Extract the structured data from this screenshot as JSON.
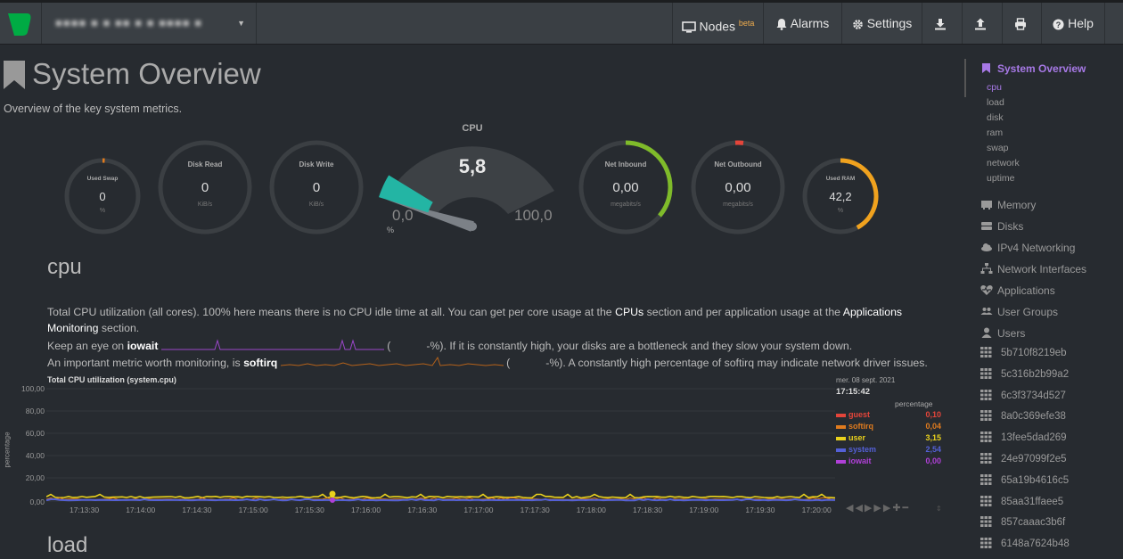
{
  "topbar": {
    "hostname": "■■■■ ■ ■ ■■ ■ ■ ■■■■ ■",
    "nodes_label": "Nodes",
    "nodes_badge": "beta",
    "alarms_label": "Alarms",
    "settings_label": "Settings",
    "help_label": "Help"
  },
  "page": {
    "title": "System Overview",
    "subtitle": "Overview of the key system metrics."
  },
  "gauges": {
    "swap": {
      "label": "Used Swap",
      "value": "0",
      "unit": "%"
    },
    "disk_read": {
      "label": "Disk Read",
      "value": "0",
      "unit": "KiB/s"
    },
    "disk_write": {
      "label": "Disk Write",
      "value": "0",
      "unit": "KiB/s"
    },
    "cpu": {
      "label": "CPU",
      "value": "5,8",
      "min": "0,0",
      "max": "100,0",
      "unit": "%",
      "fraction": 0.058
    },
    "net_in": {
      "label": "Net Inbound",
      "value": "0,00",
      "unit": "megabits/s"
    },
    "net_out": {
      "label": "Net Outbound",
      "value": "0,00",
      "unit": "megabits/s"
    },
    "ram": {
      "label": "Used RAM",
      "value": "42,2",
      "unit": "%",
      "fraction": 0.422
    }
  },
  "cpu_section": {
    "heading": "cpu",
    "line1_a": "Total CPU utilization (all cores). 100% here means there is no CPU idle time at all. You can get per core usage at the",
    "line1_link": "CPUs",
    "line1_b": "section and per application usage at the",
    "line1_link2": "Applications",
    "line2_link": "Monitoring",
    "line2_b": "section.",
    "line3_a": "Keep an eye on",
    "line3_b": "iowait",
    "line3_c": "(",
    "line3_d": "-%). If it is constantly high, your disks are a bottleneck and they slow your system down.",
    "line4_a": "An important metric worth monitoring, is",
    "line4_b": "softirq",
    "line4_c": "(",
    "line4_d": "-%). A constantly high percentage of softirq may indicate network driver issues."
  },
  "chart": {
    "title": "Total CPU utilization (system.cpu)",
    "date": "mer. 08 sept. 2021",
    "time": "17:15:42",
    "unit_header": "percentage",
    "ylabel": "percentage",
    "yticks": [
      "100,00",
      "80,00",
      "60,00",
      "40,00",
      "20,00",
      "0,00"
    ],
    "xticks": [
      "17:13:30",
      "17:14:00",
      "17:14:30",
      "17:15:00",
      "17:15:30",
      "17:16:00",
      "17:16:30",
      "17:17:00",
      "17:17:30",
      "17:18:00",
      "17:18:30",
      "17:19:00",
      "17:19:30",
      "17:20:00"
    ],
    "legend": [
      {
        "name": "guest",
        "value": "0,10",
        "color": "#e4453a"
      },
      {
        "name": "softirq",
        "value": "0,04",
        "color": "#e07b1e"
      },
      {
        "name": "user",
        "value": "3,15",
        "color": "#e9d11c"
      },
      {
        "name": "system",
        "value": "2,54",
        "color": "#5460d6"
      },
      {
        "name": "iowait",
        "value": "0,00",
        "color": "#b040d8"
      }
    ]
  },
  "load_section": {
    "heading": "load"
  },
  "sidebar": {
    "active": "System Overview",
    "subitems": [
      "cpu",
      "load",
      "disk",
      "ram",
      "swap",
      "network",
      "uptime"
    ],
    "menu": [
      "Memory",
      "Disks",
      "IPv4 Networking",
      "Network Interfaces",
      "Applications",
      "User Groups",
      "Users"
    ],
    "hashes": [
      "5b710f8219eb",
      "5c316b2b99a2",
      "6c3f3734d527",
      "8a0c369efe38",
      "13fee5dad269",
      "24e97099f2e5",
      "65a19b4616c5",
      "85aa31ffaee5",
      "857caaac3b6f",
      "6148a7624b48"
    ]
  }
}
